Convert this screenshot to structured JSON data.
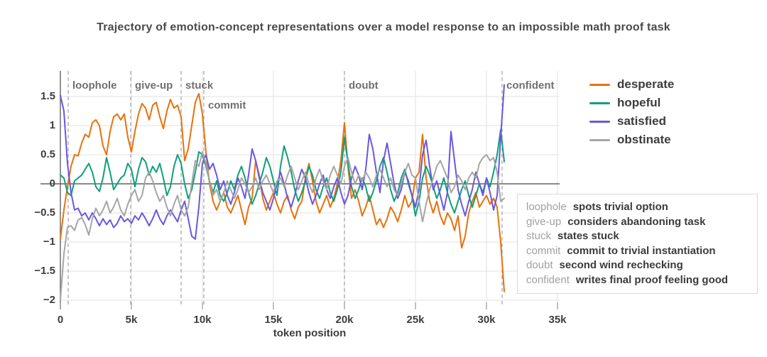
{
  "chart": {
    "title": "Trajectory of emotion-concept representations over a model response to an impossible math proof task",
    "xlabel": "token position"
  },
  "colors": {
    "background": "#ffffff",
    "axis": "#636363",
    "grid": "#e7e7e7",
    "tick_mark": "#9a9a9a",
    "event_dash": "#a8a8a8",
    "title_text": "#4a4a4a",
    "tick_text": "#3d3d3d",
    "event_text": "#707070",
    "note_key_text": "#a0a0a0",
    "note_desc_text": "#3b3b3b",
    "note_border": "#d9d9d9"
  },
  "chart_data": {
    "type": "line",
    "title": "Trajectory of emotion-concept representations over a model response to an impossible math proof task",
    "xlabel": "token position",
    "ylabel": "",
    "grid": true,
    "legend_position": "top-right",
    "xlim": [
      0,
      35000
    ],
    "ylim": [
      -2.1,
      1.95
    ],
    "x_start": 0,
    "x_step": 250,
    "x_ticks": [
      {
        "value": 0,
        "label": "0"
      },
      {
        "value": 5000,
        "label": "5k"
      },
      {
        "value": 10000,
        "label": "10k"
      },
      {
        "value": 15000,
        "label": "15k"
      },
      {
        "value": 20000,
        "label": "20k"
      },
      {
        "value": 25000,
        "label": "25k"
      },
      {
        "value": 30000,
        "label": "30k"
      },
      {
        "value": 35000,
        "label": "35k"
      }
    ],
    "y_ticks": [
      {
        "value": 1.5,
        "label": "1.5"
      },
      {
        "value": 1,
        "label": "1"
      },
      {
        "value": 0.5,
        "label": "0.5"
      },
      {
        "value": 0,
        "label": "0"
      },
      {
        "value": -0.5,
        "label": "−0.5"
      },
      {
        "value": -1,
        "label": "−1"
      },
      {
        "value": -1.5,
        "label": "−1.5"
      },
      {
        "value": -2,
        "label": "−2"
      }
    ],
    "annotations": [
      {
        "key": "loophole",
        "token": 550,
        "row": 0,
        "note": "spots trivial option"
      },
      {
        "key": "give-up",
        "token": 4950,
        "row": 0,
        "note": "considers abandoning task"
      },
      {
        "key": "stuck",
        "token": 8500,
        "row": 0,
        "note": "states stuck"
      },
      {
        "key": "commit",
        "token": 10100,
        "row": 1,
        "note": "commit to trivial instantiation"
      },
      {
        "key": "doubt",
        "token": 20000,
        "row": 0,
        "note": "second wind rechecking"
      },
      {
        "key": "confident",
        "token": 31100,
        "row": 0,
        "note": "writes final proof feeling good"
      }
    ],
    "series": [
      {
        "name": "desperate",
        "color": "#E8710A",
        "values": [
          -0.95,
          -0.45,
          -0.05,
          0.3,
          0.5,
          0.48,
          0.7,
          0.85,
          0.8,
          1.05,
          1.1,
          1.0,
          0.65,
          0.5,
          0.9,
          1.15,
          1.2,
          1.1,
          1.2,
          0.8,
          0.55,
          0.9,
          1.2,
          1.38,
          1.3,
          1.1,
          1.35,
          1.4,
          1.15,
          0.95,
          1.25,
          1.45,
          1.3,
          1.35,
          1.15,
          0.4,
          0.6,
          1.0,
          1.4,
          1.55,
          1.2,
          0.55,
          0.0,
          -0.3,
          -0.45,
          -0.3,
          -0.15,
          -0.4,
          -0.5,
          -0.35,
          -0.2,
          -0.45,
          -0.7,
          -0.4,
          -0.25,
          0.4,
          0.15,
          -0.25,
          -0.45,
          -0.3,
          -0.15,
          -0.35,
          -0.5,
          -0.3,
          -0.2,
          -0.45,
          -0.6,
          -0.4,
          -0.3,
          0.1,
          0.35,
          0.05,
          -0.3,
          -0.5,
          -0.35,
          -0.2,
          -0.4,
          -0.25,
          0.0,
          0.4,
          1.05,
          0.3,
          -0.25,
          -0.1,
          -0.3,
          -0.55,
          -0.4,
          -0.2,
          -0.45,
          -0.7,
          -0.6,
          -0.75,
          -0.6,
          -0.4,
          -0.5,
          -0.65,
          -0.45,
          -0.2,
          -0.4,
          -0.3,
          0.1,
          0.2,
          0.85,
          0.1,
          -0.3,
          -0.5,
          -0.3,
          -0.55,
          -0.7,
          -0.5,
          -0.6,
          -0.8,
          -0.55,
          -1.1,
          -0.9,
          -0.5,
          -0.3,
          -0.15,
          -0.4,
          -0.3,
          -0.2,
          -0.35,
          -0.25,
          -0.4,
          -1.0,
          -1.85
        ]
      },
      {
        "name": "hopeful",
        "color": "#0DA07A",
        "values": [
          0.15,
          0.1,
          -0.15,
          -0.2,
          0.05,
          0.1,
          0.15,
          0.25,
          0.35,
          0.2,
          -0.05,
          -0.13,
          0.1,
          0.45,
          0.2,
          -0.1,
          0.0,
          0.1,
          0.15,
          0.35,
          0.25,
          -0.05,
          0.25,
          0.45,
          0.38,
          0.15,
          0.3,
          0.2,
          0.35,
          0.1,
          -0.2,
          -0.05,
          0.3,
          0.5,
          0.35,
          0.0,
          -0.25,
          -0.1,
          0.2,
          0.55,
          0.5,
          0.3,
          0.05,
          -0.15,
          0.05,
          -0.2,
          -0.3,
          -0.15,
          0.05,
          -0.1,
          0.15,
          0.3,
          0.1,
          -0.15,
          -0.35,
          -0.2,
          0.0,
          0.2,
          0.45,
          0.3,
          0.05,
          -0.2,
          0.3,
          0.65,
          0.45,
          0.2,
          -0.1,
          -0.3,
          -0.15,
          0.05,
          0.3,
          0.15,
          -0.1,
          -0.25,
          -0.05,
          0.1,
          -0.15,
          -0.3,
          -0.1,
          0.2,
          0.8,
          0.35,
          -0.05,
          -0.25,
          -0.1,
          0.1,
          -0.05,
          -0.3,
          -0.15,
          0.05,
          0.3,
          0.45,
          0.2,
          -0.1,
          -0.3,
          -0.15,
          0.1,
          0.25,
          0.0,
          -0.2,
          -0.55,
          -0.3,
          0.1,
          0.3,
          0.15,
          -0.05,
          -0.25,
          -0.1,
          0.1,
          -0.15,
          -0.35,
          -0.5,
          -0.3,
          -0.1,
          0.05,
          -0.2,
          -0.4,
          -0.2,
          0.0,
          -0.15,
          0.1,
          -0.05,
          0.2,
          0.5,
          0.93,
          0.38
        ]
      },
      {
        "name": "satisfied",
        "color": "#6C56E0",
        "values": [
          1.52,
          1.25,
          0.35,
          -0.15,
          -0.45,
          -0.42,
          -0.55,
          -0.5,
          -0.62,
          -0.5,
          -0.6,
          -0.72,
          -0.6,
          -0.7,
          -0.62,
          -0.75,
          -0.68,
          -0.55,
          -0.65,
          -0.6,
          -0.68,
          -0.55,
          -0.62,
          -0.5,
          -0.6,
          -0.72,
          -0.6,
          -0.45,
          -0.6,
          -0.7,
          -0.55,
          -0.45,
          -0.55,
          -0.65,
          -0.45,
          -0.3,
          -0.6,
          -0.9,
          -0.95,
          -0.4,
          0.35,
          0.5,
          0.25,
          0.35,
          0.15,
          -0.1,
          0.05,
          -0.2,
          -0.35,
          -0.15,
          0.1,
          -0.05,
          -0.25,
          0.15,
          0.6,
          0.4,
          0.1,
          -0.15,
          -0.3,
          -0.45,
          -0.25,
          0.0,
          0.2,
          0.0,
          -0.25,
          -0.4,
          -0.2,
          0.05,
          0.25,
          0.1,
          -0.15,
          -0.35,
          -0.2,
          0.0,
          0.15,
          -0.1,
          -0.25,
          -0.05,
          0.1,
          -0.15,
          -0.35,
          -0.2,
          0.1,
          0.3,
          0.15,
          -0.1,
          0.25,
          0.85,
          0.6,
          0.2,
          -0.15,
          0.4,
          0.7,
          0.35,
          0.0,
          -0.25,
          -0.1,
          0.2,
          0.05,
          -0.2,
          -0.4,
          -0.1,
          0.5,
          0.75,
          0.3,
          -0.1,
          0.05,
          -0.2,
          -0.45,
          -0.15,
          0.9,
          0.4,
          -0.1,
          -0.35,
          -0.55,
          -0.3,
          -0.1,
          0.2,
          0.0,
          -0.2,
          0.1,
          -0.15,
          -0.45,
          -0.2,
          0.8,
          1.7
        ]
      },
      {
        "name": "obstinate",
        "color": "#A5A5A5",
        "values": [
          -2.0,
          -1.2,
          -0.75,
          -0.72,
          -0.8,
          -0.62,
          -0.58,
          -0.7,
          -0.88,
          -0.6,
          -0.42,
          -0.55,
          -0.45,
          -0.3,
          -0.5,
          -0.4,
          -0.25,
          -0.45,
          -0.55,
          -0.35,
          -0.2,
          -0.1,
          -0.3,
          -0.2,
          0.1,
          0.2,
          0.05,
          -0.15,
          -0.3,
          -0.2,
          -0.4,
          -0.55,
          -0.35,
          -0.2,
          -0.45,
          -0.55,
          -0.4,
          0.0,
          0.4,
          0.3,
          0.55,
          0.35,
          0.05,
          -0.2,
          -0.1,
          -0.3,
          -0.15,
          0.05,
          -0.1,
          -0.25,
          -0.1,
          0.1,
          0.0,
          -0.15,
          -0.05,
          0.1,
          -0.1,
          0.05,
          0.15,
          0.0,
          -0.15,
          0.05,
          0.1,
          -0.05,
          0.15,
          0.3,
          0.1,
          -0.1,
          0.05,
          0.2,
          0.0,
          -0.15,
          0.1,
          0.25,
          0.05,
          -0.1,
          0.15,
          0.3,
          0.15,
          0.0,
          0.3,
          0.45,
          0.2,
          0.0,
          0.15,
          0.05,
          0.2,
          0.1,
          -0.05,
          0.15,
          0.25,
          0.1,
          -0.05,
          0.1,
          -0.1,
          -0.2,
          0.0,
          0.2,
          0.35,
          0.15,
          0.1,
          -0.3,
          -0.65,
          -0.35,
          -0.1,
          0.1,
          0.3,
          0.4,
          0.25,
          0.1,
          -0.15,
          -0.05,
          0.15,
          0.05,
          -0.1,
          0.1,
          0.2,
          0.1,
          0.35,
          0.45,
          0.5,
          0.4,
          0.45,
          0.2,
          -0.3,
          -0.25
        ]
      }
    ]
  }
}
